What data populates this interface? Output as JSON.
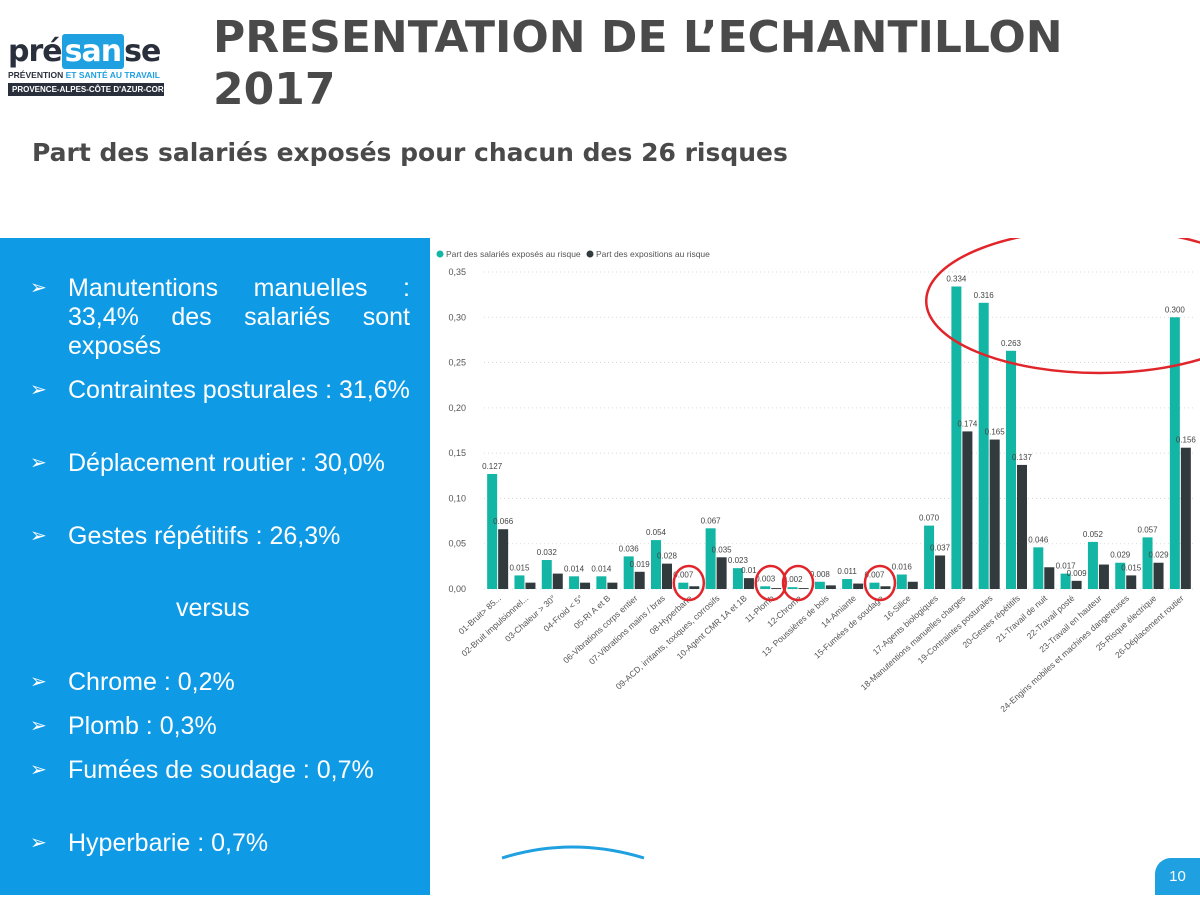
{
  "logo": {
    "pre": "pré",
    "san": "san",
    "post": "se",
    "tagline_left": "PRÉVENTION ",
    "tagline_right": "ET SANTÉ AU TRAVAIL",
    "region": "PROVENCE-ALPES-CÔTE D'AZUR-CORSE"
  },
  "title": "PRESENTATION DE L’ECHANTILLON 2017",
  "subtitle": "Part des salariés exposés pour chacun des 26 risques",
  "panel": {
    "top_bullets": [
      "Manutentions manuelles : 33,4% des salariés sont exposés",
      "Contraintes posturales : 31,6%",
      "Déplacement routier : 30,0%",
      "Gestes répétitifs : 26,3%"
    ],
    "versus": "versus",
    "bottom_bullets": [
      "Chrome : 0,2%",
      "Plomb : 0,3%",
      "Fumées de soudage : 0,7%",
      "Hyperbarie : 0,7%"
    ],
    "arrow": "➢"
  },
  "page_number": "10",
  "colors": {
    "series1": "#13b5a4",
    "series2": "#313a3d",
    "highlight": "#e0262b",
    "panel": "#0f9ae6"
  },
  "chart_data": {
    "type": "bar",
    "categories": [
      "01-Bruit> 85...",
      "02-Bruit impulsionnel...",
      "03-Chaleur > 30°",
      "04-Froid < 5°",
      "05-RI A et B",
      "06-Vibrations corps entier",
      "07-Vibrations mains / bras",
      "08-Hyperbarie",
      "09-ACD, irritants, toxiques, corrosifs",
      "10-Agent CMR 1A et 1B",
      "11-Plomb",
      "12-Chrome",
      "13- Poussières de bois",
      "14-Amiante",
      "15-Fumées de soudage",
      "16-Silice",
      "17-Agents biologiques",
      "18-Manutentions manuelles charges",
      "19-Contraintes posturales",
      "20-Gestes répétitifs",
      "21-Travail de nuit",
      "22-Travail posté",
      "23-Travail en hauteur",
      "24-Engins mobiles et machines dangereuses",
      "25-Risque électrique",
      "26-Déplacement routier"
    ],
    "series": [
      {
        "name": "Part des salariés exposés au risque",
        "values": [
          0.127,
          0.015,
          0.032,
          0.014,
          0.014,
          0.036,
          0.054,
          0.007,
          0.067,
          0.023,
          0.003,
          0.002,
          0.008,
          0.011,
          0.007,
          0.016,
          0.07,
          0.334,
          0.316,
          0.263,
          0.046,
          0.017,
          0.052,
          0.029,
          0.057,
          0.3
        ],
        "labels": [
          "0.127",
          "0.015",
          "0.032",
          "0.014",
          "0.014",
          "0.036",
          "0.054",
          "0.007",
          "0.067",
          "0.023",
          "0.003",
          "0.002",
          "0.008",
          "0.011",
          "0.007",
          "0.016",
          "0.070",
          "0.334",
          "0.316",
          "0.263",
          "0.046",
          "0.017",
          "0.052",
          "0.029",
          "0.057",
          "0.300"
        ]
      },
      {
        "name": "Part des expositions au risque",
        "values": [
          0.066,
          0.007,
          0.017,
          0.007,
          0.007,
          0.019,
          0.028,
          0.003,
          0.035,
          0.012,
          0.001,
          0.001,
          0.004,
          0.006,
          0.003,
          0.008,
          0.037,
          0.174,
          0.165,
          0.137,
          0.024,
          0.009,
          0.027,
          0.015,
          0.029,
          0.156
        ],
        "labels": [
          "0.066",
          "",
          "",
          "",
          "",
          "0.019",
          "0.028",
          "",
          "0.035",
          "0.01",
          "",
          "",
          "",
          "",
          "",
          "",
          "0.037",
          "0.174",
          "0.165",
          "0.137",
          "",
          "0.009",
          "",
          "0.015",
          "0.029",
          "0.156"
        ]
      }
    ],
    "yticks": [
      "0,00",
      "0,05",
      "0,10",
      "0,15",
      "0,20",
      "0,25",
      "0,30",
      "0,35"
    ],
    "ylim": [
      0,
      0.35
    ],
    "legend_position": "top-left",
    "grid": "dotted horizontal",
    "highlighted_categories": [
      7,
      10,
      11,
      14
    ],
    "highlighted_group": [
      17,
      18,
      19,
      25
    ]
  }
}
